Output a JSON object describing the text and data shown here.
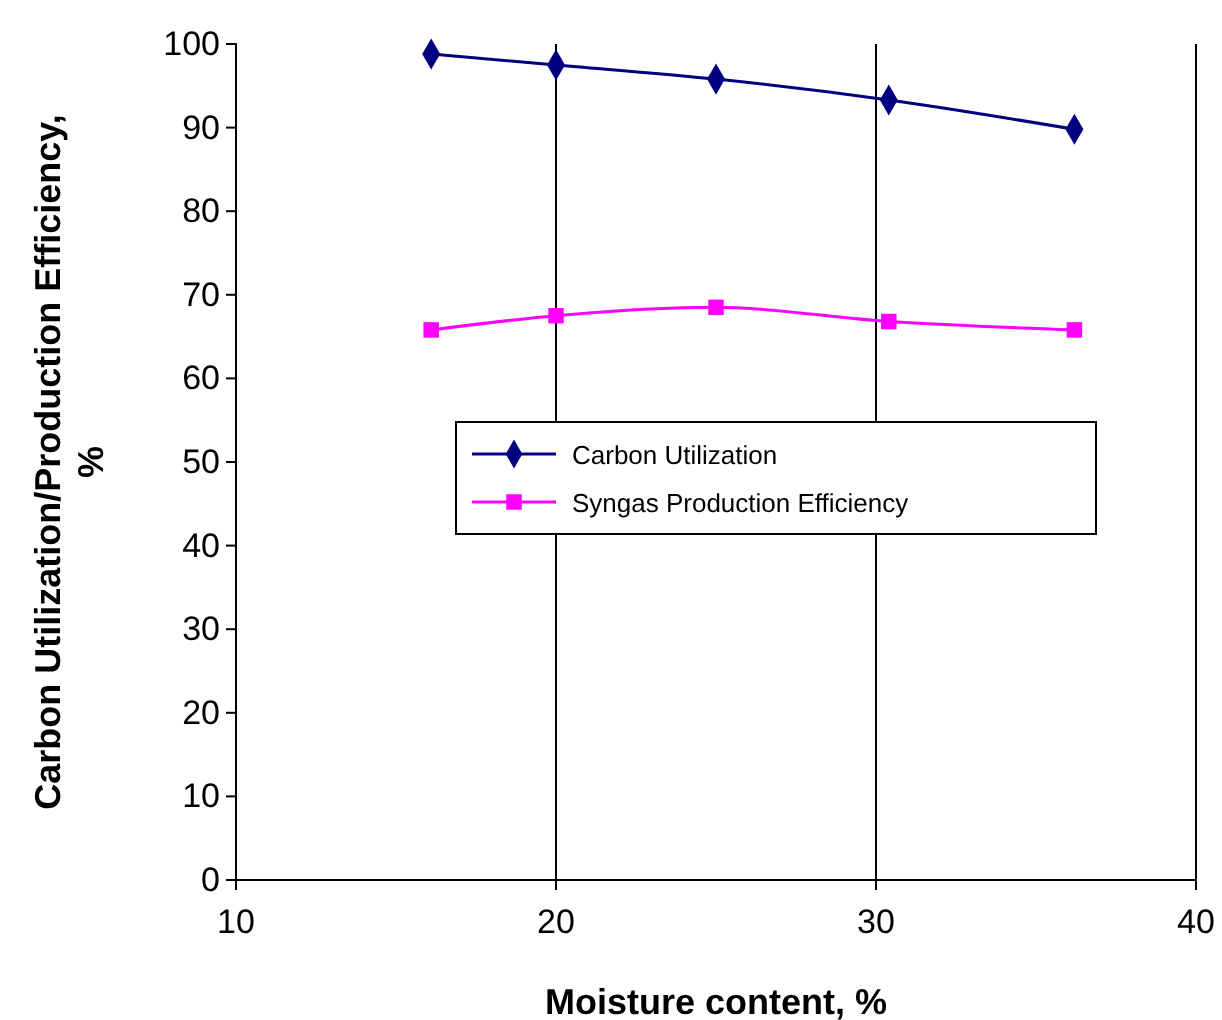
{
  "chart_data": {
    "type": "line",
    "xlabel": "Moisture content, %",
    "ylabel": "Carbon Utilization/Production Efficiency, %",
    "xlim": [
      10,
      40
    ],
    "xticks": [
      10,
      20,
      30,
      40
    ],
    "ylim": [
      0,
      100
    ],
    "yticks": [
      0,
      10,
      20,
      30,
      40,
      50,
      60,
      70,
      80,
      90,
      100
    ],
    "grid": "x",
    "legend": "center",
    "series": [
      {
        "name": "Carbon Utilization",
        "color": "#000080",
        "marker": "diamond",
        "x": [
          16.1,
          20,
          25,
          30.4,
          36.2
        ],
        "values": [
          98.8,
          97.5,
          95.8,
          93.3,
          89.8
        ]
      },
      {
        "name": "Syngas Production Efficiency",
        "color": "#ff00ff",
        "marker": "square",
        "x": [
          16.1,
          20,
          25,
          30.4,
          36.2
        ],
        "values": [
          65.8,
          67.5,
          68.5,
          66.8,
          65.8
        ]
      }
    ]
  }
}
